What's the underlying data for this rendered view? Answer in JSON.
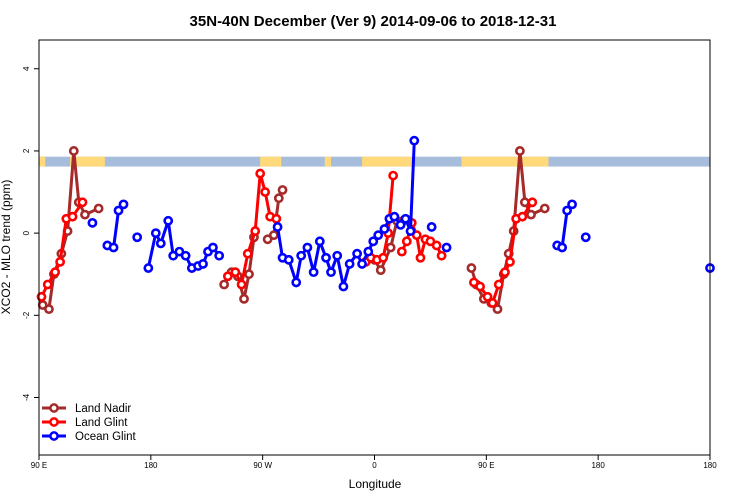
{
  "chart_data": {
    "type": "line",
    "title": "35N-40N December (Ver 9)   2014-09-06 to 2018-12-31",
    "xlabel": "Longitude",
    "ylabel": "XCO2 - MLO trend (ppm)",
    "xlim": [
      0,
      540
    ],
    "ylim": [
      -5.4,
      4.7
    ],
    "x_ticks": [
      {
        "value": 0,
        "label": "90 E"
      },
      {
        "value": 90,
        "label": "180"
      },
      {
        "value": 180,
        "label": "90 W"
      },
      {
        "value": 270,
        "label": "0"
      },
      {
        "value": 360,
        "label": "90 E"
      },
      {
        "value": 450,
        "label": "180"
      }
    ],
    "y_ticks": [
      {
        "value": -4,
        "label": "-4"
      },
      {
        "value": -2,
        "label": "-2"
      },
      {
        "value": 0,
        "label": "0"
      },
      {
        "value": 2,
        "label": "2"
      },
      {
        "value": 4,
        "label": "4"
      }
    ],
    "legend_position": "bottom-left",
    "surface_band": {
      "y_range": [
        1.62,
        1.86
      ],
      "land_color": "#ffd97a",
      "ocean_color": "#a6bddb",
      "land_segments": [
        [
          0,
          5
        ],
        [
          25,
          53
        ],
        [
          178,
          195
        ],
        [
          230,
          235
        ],
        [
          260,
          300
        ],
        [
          340,
          410
        ]
      ]
    },
    "series": [
      {
        "name": "Land Nadir",
        "color": "#a52a2a",
        "points": [
          [
            3,
            -1.75
          ],
          [
            8,
            -1.85
          ],
          [
            12,
            -1.0
          ],
          [
            18,
            -0.5
          ],
          [
            23,
            0.05
          ],
          [
            28,
            2.0
          ],
          [
            32,
            0.75
          ],
          [
            37,
            0.45
          ],
          [
            48,
            0.6
          ],
          null,
          [
            149,
            -1.25
          ],
          [
            155,
            -0.95
          ],
          [
            160,
            -1.05
          ],
          [
            165,
            -1.6
          ],
          [
            169,
            -1.0
          ],
          [
            173,
            -0.1
          ],
          null,
          [
            184,
            -0.15
          ],
          [
            189,
            -0.05
          ],
          [
            193,
            0.85
          ],
          [
            196,
            1.05
          ],
          null,
          [
            270,
            -0.65
          ],
          [
            275,
            -0.9
          ],
          [
            283,
            -0.35
          ],
          [
            288,
            0.3
          ],
          [
            293,
            0.3
          ],
          null,
          [
            348,
            -0.85
          ],
          [
            352,
            -1.25
          ],
          [
            358,
            -1.6
          ],
          [
            364,
            -1.7
          ],
          [
            369,
            -1.85
          ],
          [
            374,
            -1.0
          ],
          [
            378,
            -0.5
          ],
          [
            382,
            0.05
          ],
          [
            387,
            2.0
          ],
          [
            391,
            0.75
          ],
          [
            396,
            0.45
          ],
          [
            407,
            0.6
          ]
        ]
      },
      {
        "name": "Land Glint",
        "color": "#ff0000",
        "points": [
          [
            2,
            -1.55
          ],
          [
            7,
            -1.25
          ],
          [
            13,
            -0.95
          ],
          [
            17,
            -0.7
          ],
          [
            22,
            0.35
          ],
          [
            27,
            0.4
          ],
          [
            35,
            0.75
          ],
          null,
          [
            152,
            -1.05
          ],
          [
            158,
            -0.95
          ],
          [
            163,
            -1.25
          ],
          [
            168,
            -0.5
          ],
          [
            174,
            0.05
          ],
          [
            178,
            1.45
          ],
          [
            182,
            1.0
          ],
          [
            186,
            0.4
          ],
          [
            191,
            0.35
          ],
          null,
          [
            263,
            -0.7
          ],
          [
            267,
            -0.6
          ],
          [
            272,
            -0.65
          ],
          [
            277,
            -0.6
          ],
          [
            281,
            0.0
          ],
          [
            285,
            1.4
          ],
          null,
          [
            292,
            -0.45
          ],
          [
            296,
            -0.2
          ],
          [
            300,
            0.25
          ],
          [
            304,
            -0.05
          ],
          [
            307,
            -0.6
          ],
          [
            311,
            -0.15
          ],
          [
            315,
            -0.2
          ],
          [
            320,
            -0.3
          ],
          [
            324,
            -0.55
          ],
          null,
          [
            350,
            -1.2
          ],
          [
            355,
            -1.3
          ],
          [
            361,
            -1.55
          ],
          [
            365,
            -1.7
          ],
          [
            370,
            -1.25
          ],
          [
            375,
            -0.95
          ],
          [
            379,
            -0.7
          ],
          [
            384,
            0.35
          ],
          [
            389,
            0.4
          ],
          [
            397,
            0.75
          ]
        ]
      },
      {
        "name": "Ocean Glint",
        "color": "#0000ff",
        "points": [
          [
            43,
            0.25
          ],
          null,
          [
            55,
            -0.3
          ],
          [
            60,
            -0.35
          ],
          [
            64,
            0.55
          ],
          [
            68,
            0.7
          ],
          null,
          [
            79,
            -0.1
          ],
          null,
          [
            88,
            -0.85
          ],
          [
            94,
            0.0
          ],
          [
            98,
            -0.25
          ],
          [
            104,
            0.3
          ],
          [
            108,
            -0.55
          ],
          [
            113,
            -0.45
          ],
          [
            118,
            -0.55
          ],
          [
            123,
            -0.85
          ],
          [
            128,
            -0.8
          ],
          [
            132,
            -0.75
          ],
          [
            136,
            -0.45
          ],
          [
            140,
            -0.35
          ],
          [
            145,
            -0.55
          ],
          null,
          [
            192,
            0.15
          ],
          [
            196,
            -0.6
          ],
          [
            201,
            -0.65
          ],
          [
            207,
            -1.2
          ],
          [
            211,
            -0.55
          ],
          [
            216,
            -0.35
          ],
          [
            221,
            -0.95
          ],
          [
            226,
            -0.2
          ],
          [
            231,
            -0.6
          ],
          [
            235,
            -0.95
          ],
          [
            240,
            -0.55
          ],
          [
            245,
            -1.3
          ],
          [
            250,
            -0.75
          ],
          [
            256,
            -0.5
          ],
          [
            260,
            -0.75
          ],
          [
            265,
            -0.45
          ],
          [
            269,
            -0.2
          ],
          [
            273,
            -0.05
          ],
          [
            278,
            0.1
          ],
          [
            282,
            0.35
          ],
          [
            286,
            0.4
          ],
          [
            291,
            0.2
          ],
          [
            295,
            0.35
          ],
          [
            299,
            0.05
          ],
          [
            302,
            2.25
          ],
          null,
          [
            316,
            0.15
          ],
          null,
          [
            328,
            -0.35
          ],
          null,
          [
            417,
            -0.3
          ],
          [
            421,
            -0.35
          ],
          [
            425,
            0.55
          ],
          [
            429,
            0.7
          ],
          null,
          [
            440,
            -0.1
          ],
          null,
          [
            540,
            -0.85
          ]
        ]
      }
    ]
  }
}
